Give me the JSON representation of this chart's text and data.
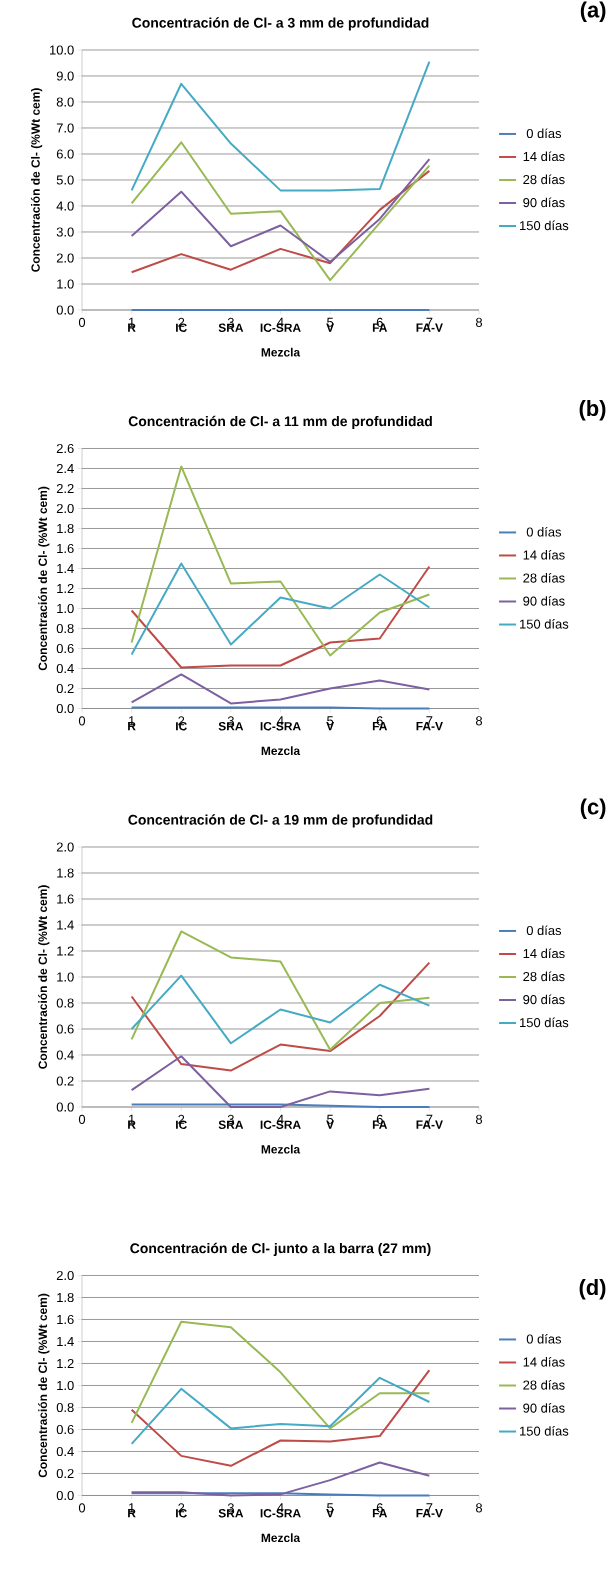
{
  "chart_data": [
    {
      "type": "line",
      "title": "Concentración de Cl- a 3 mm de profundidad",
      "xlabel": "Mezcla",
      "ylabel": "Concentración de Cl- (%Wt cem)",
      "x": [
        1,
        2,
        3,
        4,
        5,
        6,
        7
      ],
      "xlim": [
        0,
        8
      ],
      "xticks": [
        0,
        1,
        2,
        3,
        4,
        5,
        6,
        7,
        8
      ],
      "ylim": [
        0,
        10
      ],
      "yticks": [
        {
          "value": 0,
          "label": "0.0"
        },
        {
          "value": 1,
          "label": "1.0"
        },
        {
          "value": 2,
          "label": "2.0"
        },
        {
          "value": 3,
          "label": "3.0"
        },
        {
          "value": 4,
          "label": "4.0"
        },
        {
          "value": 5,
          "label": "5.0"
        },
        {
          "value": 6,
          "label": "6.0"
        },
        {
          "value": 7,
          "label": "7.0"
        },
        {
          "value": 8,
          "label": "8.0"
        },
        {
          "value": 9,
          "label": "9.0"
        },
        {
          "value": 10,
          "label": "10.0"
        }
      ],
      "grid": "y",
      "legend": "right",
      "series": [
        {
          "name": "0 días",
          "color": "#4a7ebb",
          "values": [
            0,
            0,
            0,
            0,
            0,
            0,
            0
          ]
        },
        {
          "name": "14 días",
          "color": "#be4b48",
          "values": [
            1.45,
            2.15,
            1.55,
            2.35,
            1.8,
            3.85,
            5.35
          ]
        },
        {
          "name": "28 días",
          "color": "#98b954",
          "values": [
            4.1,
            6.45,
            3.7,
            3.8,
            1.15,
            3.35,
            5.55
          ]
        },
        {
          "name": "90 días",
          "color": "#7d60a0",
          "values": [
            2.85,
            4.55,
            2.45,
            3.25,
            1.85,
            3.5,
            5.8
          ]
        },
        {
          "name": "150 días",
          "color": "#46aac5",
          "values": [
            4.6,
            8.7,
            6.4,
            4.6,
            4.6,
            4.65,
            9.55
          ]
        }
      ],
      "annotations": [
        "(a)",
        "R",
        "IC",
        "SRA",
        "IC-SRA",
        "V",
        "FA",
        "FA-V"
      ]
    },
    {
      "type": "line",
      "title": "Concentración de Cl- a 11 mm de profundidad",
      "xlabel": "Mezcla",
      "ylabel": "Concentración de Cl- (%Wt cem)",
      "x": [
        1,
        2,
        3,
        4,
        5,
        6,
        7
      ],
      "xlim": [
        0,
        8
      ],
      "xticks": [
        0,
        1,
        2,
        3,
        4,
        5,
        6,
        7,
        8
      ],
      "ylim": [
        0,
        2.6
      ],
      "yticks": [
        {
          "value": 0,
          "label": "0.0"
        },
        {
          "value": 0.2,
          "label": "0.2"
        },
        {
          "value": 0.4,
          "label": "0.4"
        },
        {
          "value": 0.6,
          "label": "0.6"
        },
        {
          "value": 0.8,
          "label": "0.8"
        },
        {
          "value": 1,
          "label": "1.0"
        },
        {
          "value": 1.2,
          "label": "1.2"
        },
        {
          "value": 1.4,
          "label": "1.4"
        },
        {
          "value": 1.6,
          "label": "1.6"
        },
        {
          "value": 1.8,
          "label": "1.8"
        },
        {
          "value": 2,
          "label": "2.0"
        },
        {
          "value": 2.2,
          "label": "2.2"
        },
        {
          "value": 2.4,
          "label": "2.4"
        },
        {
          "value": 2.6,
          "label": "2.6"
        }
      ],
      "grid": "y",
      "legend": "right",
      "series": [
        {
          "name": "0 días",
          "color": "#4a7ebb",
          "values": [
            0.01,
            0.01,
            0.01,
            0.01,
            0.01,
            0,
            0
          ]
        },
        {
          "name": "14 días",
          "color": "#be4b48",
          "values": [
            0.98,
            0.41,
            0.43,
            0.43,
            0.66,
            0.7,
            1.42
          ]
        },
        {
          "name": "28 días",
          "color": "#98b954",
          "values": [
            0.66,
            2.42,
            1.25,
            1.27,
            0.53,
            0.96,
            1.14
          ]
        },
        {
          "name": "90 días",
          "color": "#7d60a0",
          "values": [
            0.06,
            0.34,
            0.05,
            0.09,
            0.2,
            0.28,
            0.19
          ]
        },
        {
          "name": "150 días",
          "color": "#46aac5",
          "values": [
            0.54,
            1.45,
            0.64,
            1.11,
            1.0,
            1.34,
            1.01
          ]
        }
      ],
      "annotations": [
        "(b)",
        "R",
        "IC",
        "SRA",
        "IC-SRA",
        "V",
        "FA",
        "FA-V"
      ]
    },
    {
      "type": "line",
      "title": "Concentración de Cl- a 19 mm de profundidad",
      "xlabel": "Mezcla",
      "ylabel": "Concentración de Cl- (%Wt cem)",
      "x": [
        1,
        2,
        3,
        4,
        5,
        6,
        7
      ],
      "xlim": [
        0,
        8
      ],
      "xticks": [
        0,
        1,
        2,
        3,
        4,
        5,
        6,
        7,
        8
      ],
      "ylim": [
        0,
        2
      ],
      "yticks": [
        {
          "value": 0,
          "label": "0.0"
        },
        {
          "value": 0.2,
          "label": "0.2"
        },
        {
          "value": 0.4,
          "label": "0.4"
        },
        {
          "value": 0.6,
          "label": "0.6"
        },
        {
          "value": 0.8,
          "label": "0.8"
        },
        {
          "value": 1,
          "label": "1.0"
        },
        {
          "value": 1.2,
          "label": "1.2"
        },
        {
          "value": 1.4,
          "label": "1.4"
        },
        {
          "value": 1.6,
          "label": "1.6"
        },
        {
          "value": 1.8,
          "label": "1.8"
        },
        {
          "value": 2,
          "label": "2.0"
        }
      ],
      "grid": "y",
      "legend": "right",
      "series": [
        {
          "name": "0 días",
          "color": "#4a7ebb",
          "values": [
            0.02,
            0.02,
            0.02,
            0.02,
            0.01,
            0,
            0
          ]
        },
        {
          "name": "14 días",
          "color": "#be4b48",
          "values": [
            0.85,
            0.33,
            0.28,
            0.48,
            0.43,
            0.7,
            1.11
          ]
        },
        {
          "name": "28 días",
          "color": "#98b954",
          "values": [
            0.52,
            1.35,
            1.15,
            1.12,
            0.44,
            0.8,
            0.84
          ]
        },
        {
          "name": "90 días",
          "color": "#7d60a0",
          "values": [
            0.13,
            0.39,
            0,
            0,
            0.12,
            0.09,
            0.14
          ]
        },
        {
          "name": "150 días",
          "color": "#46aac5",
          "values": [
            0.6,
            1.01,
            0.49,
            0.75,
            0.65,
            0.94,
            0.78
          ]
        }
      ],
      "annotations": [
        "(c)",
        "R",
        "IC",
        "SRA",
        "IC-SRA",
        "V",
        "FA",
        "FA-V"
      ]
    },
    {
      "type": "line",
      "title": "Concentración de Cl- junto a la barra (27 mm)",
      "xlabel": "Mezcla",
      "ylabel": "Concentración de Cl- (%Wt cem)",
      "x": [
        1,
        2,
        3,
        4,
        5,
        6,
        7
      ],
      "xlim": [
        0,
        8
      ],
      "xticks": [
        0,
        1,
        2,
        3,
        4,
        5,
        6,
        7,
        8
      ],
      "ylim": [
        0,
        2
      ],
      "yticks": [
        {
          "value": 0,
          "label": "0.0"
        },
        {
          "value": 0.2,
          "label": "0.2"
        },
        {
          "value": 0.4,
          "label": "0.4"
        },
        {
          "value": 0.6,
          "label": "0.6"
        },
        {
          "value": 0.8,
          "label": "0.8"
        },
        {
          "value": 1,
          "label": "1.0"
        },
        {
          "value": 1.2,
          "label": "1.2"
        },
        {
          "value": 1.4,
          "label": "1.4"
        },
        {
          "value": 1.6,
          "label": "1.6"
        },
        {
          "value": 1.8,
          "label": "1.8"
        },
        {
          "value": 2,
          "label": "2.0"
        }
      ],
      "grid": "y",
      "legend": "right",
      "series": [
        {
          "name": "0 días",
          "color": "#4a7ebb",
          "values": [
            0.02,
            0.02,
            0.02,
            0.02,
            0.01,
            0,
            0
          ]
        },
        {
          "name": "14 días",
          "color": "#be4b48",
          "values": [
            0.78,
            0.36,
            0.27,
            0.5,
            0.49,
            0.54,
            1.14
          ]
        },
        {
          "name": "28 días",
          "color": "#98b954",
          "values": [
            0.66,
            1.58,
            1.53,
            1.12,
            0.61,
            0.93,
            0.93
          ]
        },
        {
          "name": "90 días",
          "color": "#7d60a0",
          "values": [
            0.03,
            0.03,
            0,
            0.01,
            0.14,
            0.3,
            0.18
          ]
        },
        {
          "name": "150 días",
          "color": "#46aac5",
          "values": [
            0.47,
            0.97,
            0.61,
            0.65,
            0.63,
            1.07,
            0.85
          ]
        }
      ],
      "annotations": [
        "(d)",
        "R",
        "IC",
        "SRA",
        "IC-SRA",
        "V",
        "FA",
        "FA-V"
      ]
    }
  ]
}
